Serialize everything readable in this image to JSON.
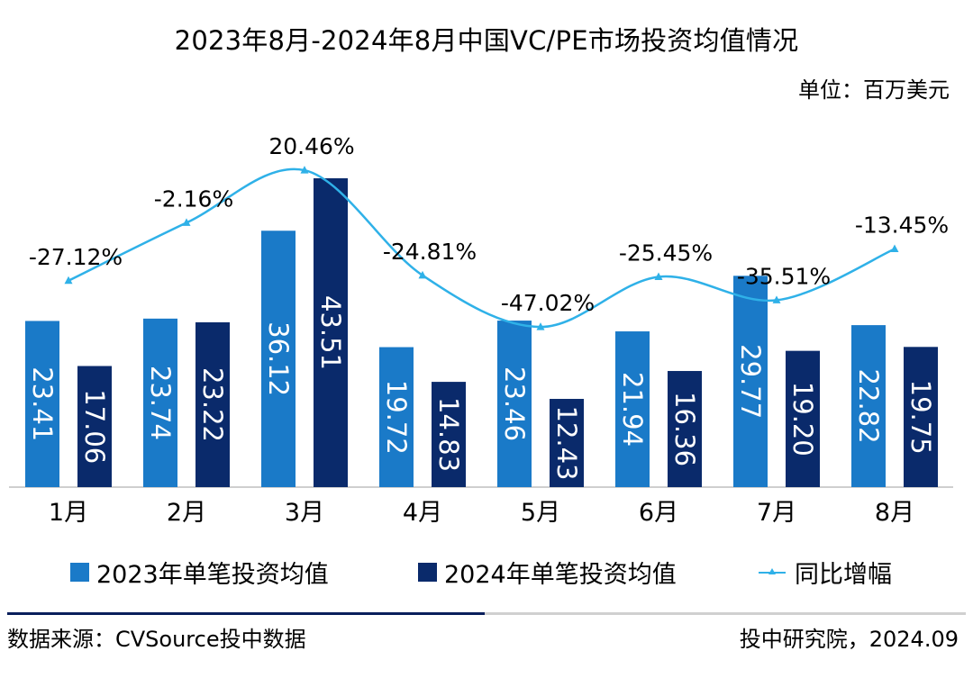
{
  "title": "2023年8月-2024年8月中国VC/PE市场投资均值情况",
  "unit": "单位：百万美元",
  "colors": {
    "series_2023": "#1a7ac8",
    "series_2024": "#0a2a6b",
    "yoy_line": "#2fb1e8",
    "axis": "#bfbfbf",
    "footer_dark": "#0a1f5c",
    "footer_light": "#d0d0d0"
  },
  "chart_data": {
    "type": "bar",
    "title": "2023年8月-2024年8月中国VC/PE市场投资均值情况",
    "categories": [
      "1月",
      "2月",
      "3月",
      "4月",
      "5月",
      "6月",
      "7月",
      "8月"
    ],
    "series": [
      {
        "name": "2023年单笔投资均值",
        "values": [
          23.41,
          23.74,
          36.12,
          19.72,
          23.46,
          21.94,
          29.77,
          22.82
        ],
        "labels": [
          "23.41",
          "23.74",
          "36.12",
          "19.72",
          "23.46",
          "21.94",
          "29.77",
          "22.82"
        ]
      },
      {
        "name": "2024年单笔投资均值",
        "values": [
          17.06,
          23.22,
          43.51,
          14.83,
          12.43,
          16.36,
          19.2,
          19.75
        ],
        "labels": [
          "17.06",
          "23.22",
          "43.51",
          "14.83",
          "12.43",
          "16.36",
          "19.20",
          "19.75"
        ]
      }
    ],
    "line_series": {
      "name": "同比增幅",
      "values": [
        -27.12,
        -2.16,
        20.46,
        -24.81,
        -47.02,
        -25.45,
        -35.51,
        -13.45
      ],
      "labels": [
        "-27.12%",
        "-2.16%",
        "20.46%",
        "-24.81%",
        "-47.02%",
        "-25.45%",
        "-35.51%",
        "-13.45%"
      ],
      "ylim": [
        -116,
        55
      ]
    },
    "ylim": [
      0,
      43.51
    ],
    "xlabel": "",
    "ylabel": "",
    "grid": false,
    "legend_position": "bottom"
  },
  "legend": {
    "items": [
      {
        "label": "2023年单笔投资均值",
        "kind": "bar"
      },
      {
        "label": "2024年单笔投资均值",
        "kind": "bar"
      },
      {
        "label": "同比增幅",
        "kind": "line"
      }
    ]
  },
  "footer": {
    "source": "数据来源：CVSource投中数据",
    "credit": "投中研究院，2024.09"
  }
}
